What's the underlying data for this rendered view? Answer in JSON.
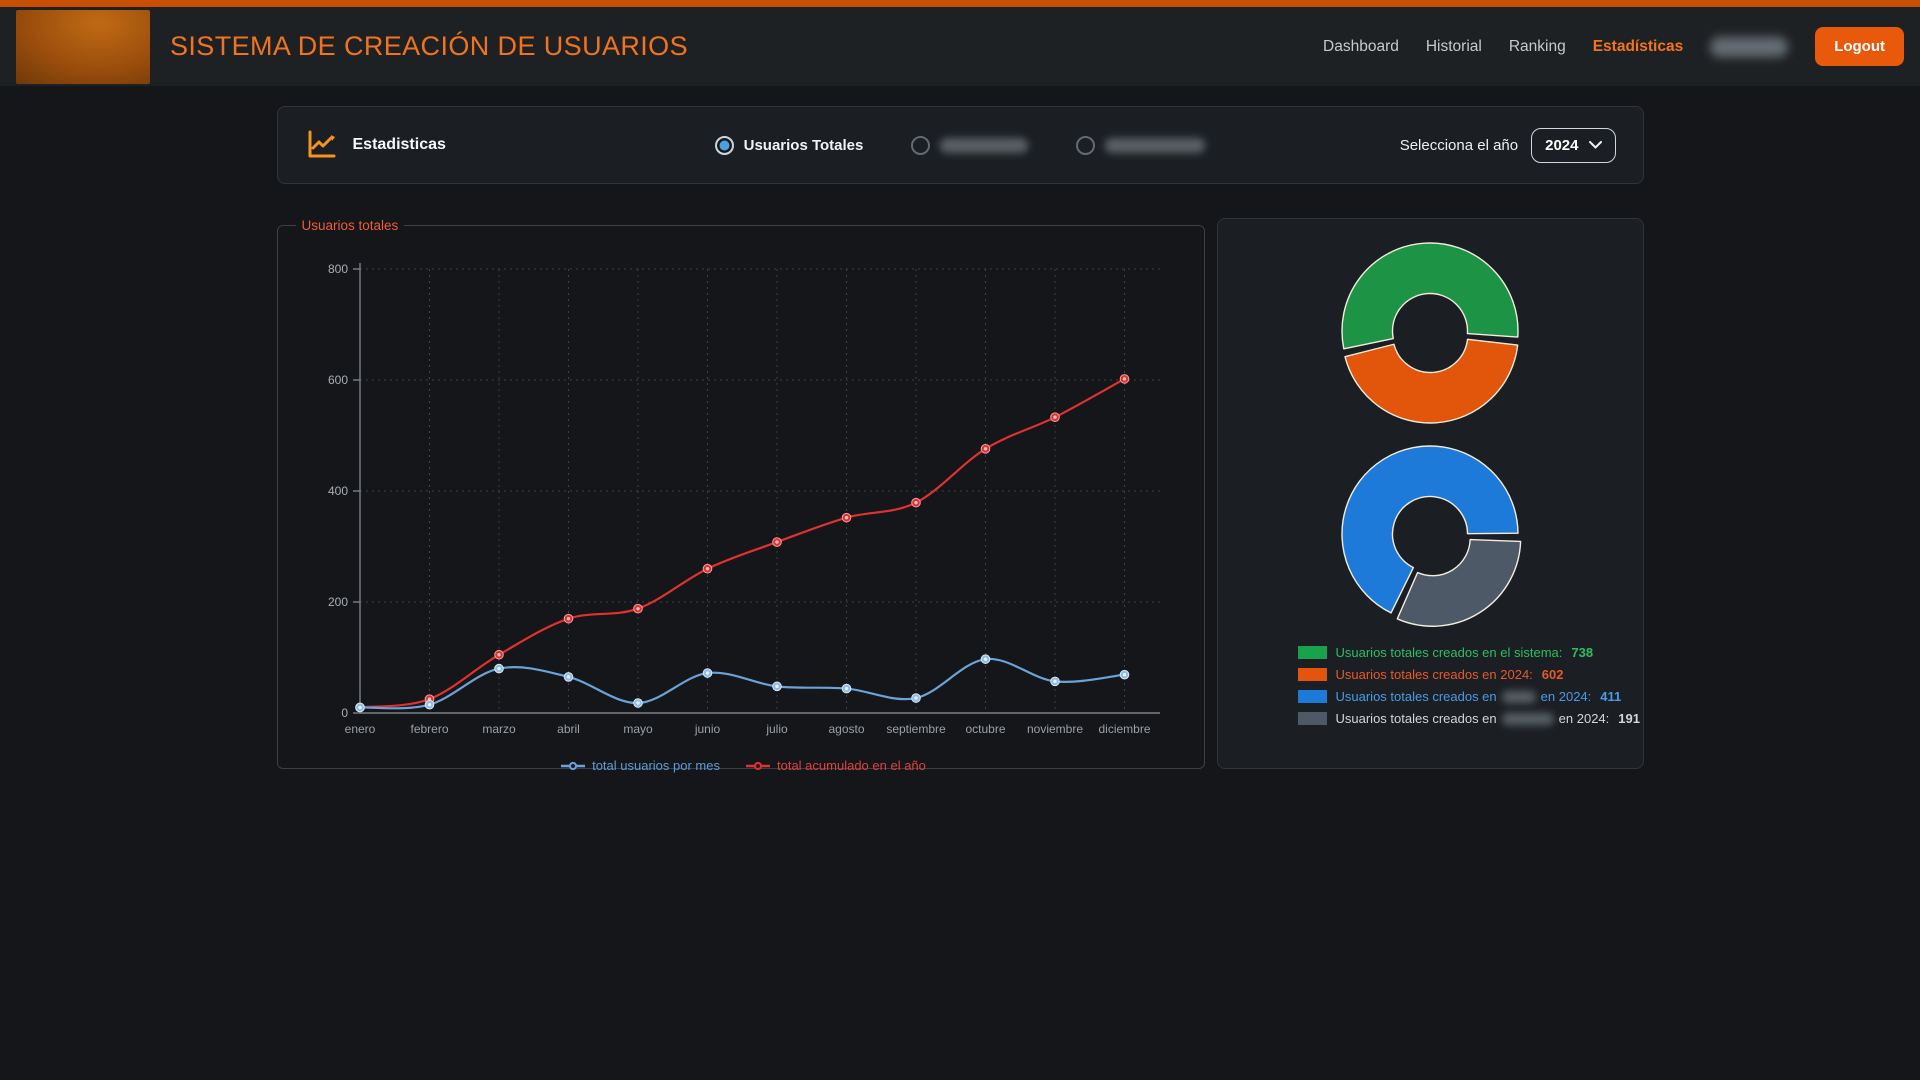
{
  "theme": {
    "stripe": "#c84f03",
    "brand_orange": "#f0741f",
    "nav_active_orange": "#f4731c",
    "logout_orange": "#e8590c",
    "card_bg": "#1b1f23",
    "page_bg": "#141619",
    "selected_radio_blue": "#4f9fe0",
    "fieldset_label_red": "#f25a3c"
  },
  "header": {
    "title": "SISTEMA DE CREACIÓN DE USUARIOS",
    "nav": {
      "items": [
        {
          "label": "Dashboard",
          "active": false
        },
        {
          "label": "Historial",
          "active": false
        },
        {
          "label": "Ranking",
          "active": false
        },
        {
          "label": "Estadísticas",
          "active": true
        }
      ],
      "username_redacted": true,
      "logout_label": "Logout"
    }
  },
  "toolbar": {
    "heading": "Estadisticas",
    "icon": "line-chart-icon",
    "radios": [
      {
        "label": "Usuarios Totales",
        "selected": true,
        "redacted": false
      },
      {
        "label": "",
        "selected": false,
        "redacted": true
      },
      {
        "label": "",
        "selected": false,
        "redacted": true
      }
    ],
    "year_label": "Selecciona el año",
    "year_value": "2024"
  },
  "chart_data": [
    {
      "type": "line",
      "title": "Usuarios totales",
      "x": [
        "enero",
        "febrero",
        "marzo",
        "abril",
        "mayo",
        "junio",
        "julio",
        "agosto",
        "septiembre",
        "octubre",
        "noviembre",
        "diciembre"
      ],
      "series": [
        {
          "name": "total usuarios por mes",
          "color": "#6ba3d8",
          "marker_fill": "#8fbce4",
          "marker_rim": "#d9e8f5",
          "marker_core": "#e8f1fa",
          "values": [
            10,
            15,
            80,
            65,
            18,
            72,
            48,
            44,
            27,
            97,
            57,
            69
          ]
        },
        {
          "name": "total acumulado en el año",
          "color": "#e03131",
          "marker_fill": "#e03131",
          "marker_rim": "#f59f9f",
          "marker_core": "#ffc1c1",
          "values": [
            10,
            25,
            105,
            170,
            188,
            260,
            308,
            352,
            379,
            476,
            533,
            602
          ]
        }
      ],
      "ylim": [
        0,
        800
      ],
      "ytick_step": 200,
      "grid": "dotted",
      "legend_position": "bottom"
    },
    {
      "type": "donut",
      "rotation_deg": 257,
      "segments": [
        {
          "label": "Usuarios totales creados en el sistema",
          "value": 738,
          "color": "#1d9345",
          "offset": 0
        },
        {
          "label": "Usuarios totales creados en 2024",
          "value": 602,
          "color": "#e1560a",
          "offset": 4
        }
      ]
    },
    {
      "type": "donut",
      "rotation_deg": 205,
      "segments": [
        {
          "label": "Usuarios totales creados en (redacted) en 2024",
          "value": 411,
          "color": "#1e7ad8",
          "offset": 0
        },
        {
          "label": "Usuarios totales creados en (redacted) en 2024",
          "value": 191,
          "color": "#4d5966",
          "offset": 5
        }
      ]
    }
  ],
  "stats_legend": {
    "items": [
      {
        "prefix": "Usuarios totales creados en el sistema:",
        "redacted": false,
        "suffix": "",
        "value": "738",
        "text_color": "#2dbe60",
        "swatch_color": "#18a24b"
      },
      {
        "prefix": "Usuarios totales creados en 2024:",
        "redacted": false,
        "suffix": "",
        "value": "602",
        "text_color": "#e6592a",
        "swatch_color": "#e1560a"
      },
      {
        "prefix": "Usuarios totales creados en",
        "redacted": true,
        "suffix": "en 2024:",
        "value": "411",
        "text_color": "#4a9be6",
        "swatch_color": "#1e7ad8"
      },
      {
        "prefix": "Usuarios totales creados en",
        "redacted": true,
        "suffix": "en 2024:",
        "value": "191",
        "text_color": "#d3d7db",
        "swatch_color": "#4d5966"
      }
    ]
  }
}
